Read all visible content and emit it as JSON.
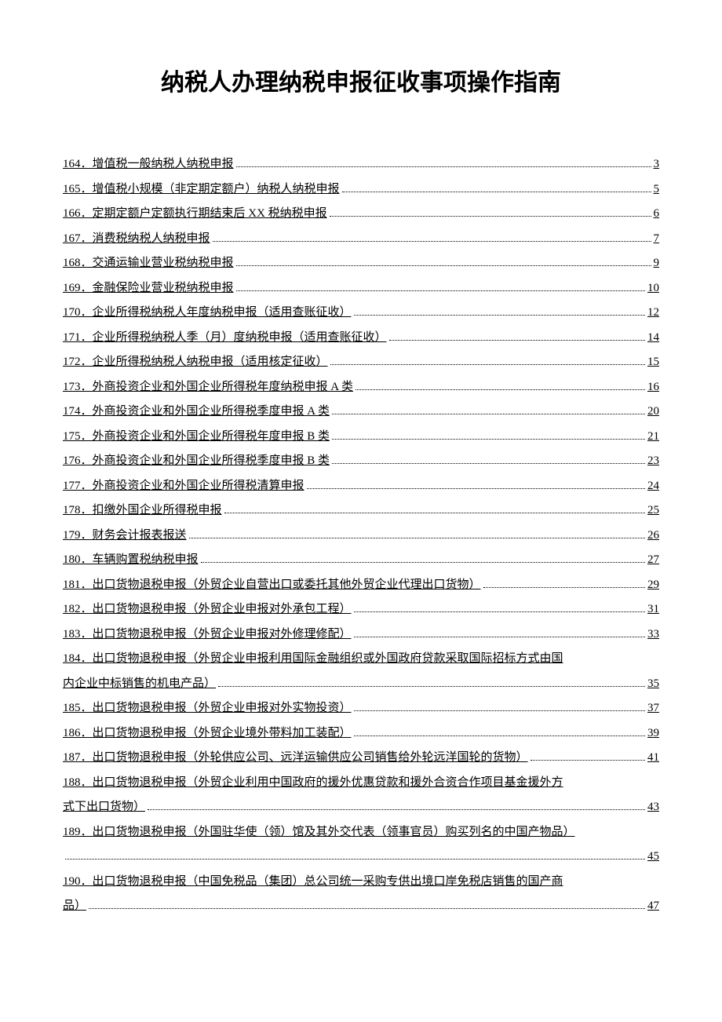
{
  "title": "纳税人办理纳税申报征收事项操作指南",
  "toc": [
    {
      "num": "164．",
      "text": "增值税一般纳税人纳税申报",
      "page": "3"
    },
    {
      "num": "165．",
      "text": "增值税小规模（非定期定额户）纳税人纳税申报",
      "page": "5"
    },
    {
      "num": "166．",
      "text": "定期定额户定额执行期结束后 XX 税纳税申报",
      "page": "6"
    },
    {
      "num": "167．",
      "text": "消费税纳税人纳税申报",
      "page": "7"
    },
    {
      "num": "168．",
      "text": "交通运输业营业税纳税申报",
      "page": "9"
    },
    {
      "num": "169．",
      "text": "金融保险业营业税纳税申报",
      "page": "10"
    },
    {
      "num": "170．",
      "text": "企业所得税纳税人年度纳税申报（适用查账征收）",
      "page": "12"
    },
    {
      "num": "171．",
      "text": "企业所得税纳税人季（月）度纳税申报（适用查账征收）",
      "page": "14"
    },
    {
      "num": "172．",
      "text": "企业所得税纳税人纳税申报（适用核定征收）",
      "page": "15"
    },
    {
      "num": "173．",
      "text": "外商投资企业和外国企业所得税年度纳税申报 A 类",
      "page": "16"
    },
    {
      "num": "174．",
      "text": "外商投资企业和外国企业所得税季度申报 A 类",
      "page": "20"
    },
    {
      "num": "175．",
      "text": "外商投资企业和外国企业所得税年度申报 B 类",
      "page": "21"
    },
    {
      "num": "176．",
      "text": "外商投资企业和外国企业所得税季度申报 B 类",
      "page": "23"
    },
    {
      "num": "177．",
      "text": "外商投资企业和外国企业所得税清算申报",
      "page": "24"
    },
    {
      "num": "178．",
      "text": "扣缴外国企业所得税申报",
      "page": "25"
    },
    {
      "num": "179．",
      "text": "财务会计报表报送",
      "page": "26"
    },
    {
      "num": "180．",
      "text": "车辆购置税纳税申报",
      "page": "27"
    },
    {
      "num": "181．",
      "text": "出口货物退税申报（外贸企业自营出口或委托其他外贸企业代理出口货物）",
      "page": "29"
    },
    {
      "num": "182．",
      "text": "出口货物退税申报（外贸企业申报对外承包工程）",
      "page": "31"
    },
    {
      "num": "183．",
      "text": "出口货物退税申报（外贸企业申报对外修理修配）",
      "page": "33"
    },
    {
      "num": "184．",
      "text": "出口货物退税申报（外贸企业申报利用国际金融组织或外国政府贷款采取国际招标方式由国",
      "text2": "内企业中标销售的机电产品）",
      "page": "35",
      "multiline": true
    },
    {
      "num": "185．",
      "text": "出口货物退税申报（外贸企业申报对外实物投资）",
      "page": "37"
    },
    {
      "num": "186．",
      "text": "出口货物退税申报（外贸企业境外带料加工装配）",
      "page": "39"
    },
    {
      "num": "187．",
      "text": "出口货物退税申报（外轮供应公司、远洋运输供应公司销售给外轮远洋国轮的货物）",
      "page": "41"
    },
    {
      "num": "188．",
      "text": "出口货物退税申报（外贸企业利用中国政府的援外优惠贷款和援外合资合作项目基金援外方",
      "text2": "式下出口货物）",
      "page": "43",
      "multiline": true
    },
    {
      "num": "189．",
      "text": "出口货物退税申报（外国驻华使（领）馆及其外交代表（领事官员）购买列名的中国产物品）",
      "text2": "",
      "page": "45",
      "multiline": true
    },
    {
      "num": "190．",
      "text": "出口货物退税申报（中国免税品（集团）总公司统一采购专供出境口岸免税店销售的国产商",
      "text2": "品）",
      "page": "47",
      "multiline": true
    }
  ]
}
